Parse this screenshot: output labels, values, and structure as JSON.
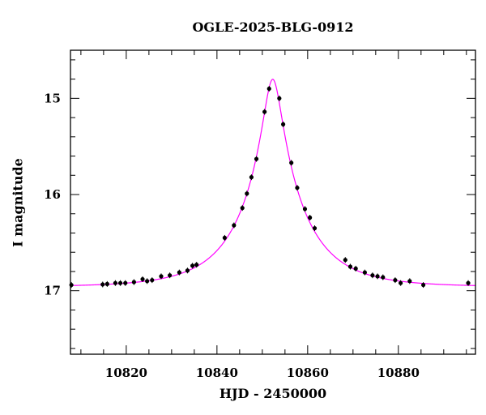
{
  "chart_data": {
    "type": "scatter",
    "title": "OGLE-2025-BLG-0912",
    "xlabel": "HJD - 2450000",
    "ylabel": "I magnitude",
    "xlim": [
      10807.7,
      10897.0
    ],
    "ylim": [
      17.66,
      14.5
    ],
    "y_inverted": true,
    "xticks": [
      10820,
      10840,
      10860,
      10880
    ],
    "xticks_minor_step": 5,
    "yticks": [
      15,
      16,
      17
    ],
    "yticks_minor_step": 0.2,
    "grid": false,
    "colors": {
      "points": "#000000",
      "model": "#ff00ff",
      "axes": "#000000"
    },
    "series": [
      {
        "type": "scatter",
        "x": [
          10807.9,
          10814.8,
          10815.8,
          10817.6,
          10818.7,
          10819.8,
          10821.7,
          10823.6,
          10824.6,
          10825.7,
          10827.7,
          10829.6,
          10831.7,
          10833.5,
          10834.6,
          10835.5,
          10841.7,
          10843.75,
          10845.6,
          10846.6,
          10847.6,
          10848.7,
          10850.5,
          10851.5,
          10853.75,
          10854.6,
          10856.4,
          10857.7,
          10859.4,
          10860.5,
          10861.55,
          10868.3,
          10869.4,
          10870.6,
          10872.6,
          10874.3,
          10875.4,
          10876.6,
          10879.3,
          10880.5,
          10882.5,
          10885.5,
          10895.4
        ],
        "y": [
          16.94,
          16.935,
          16.93,
          16.92,
          16.92,
          16.92,
          16.91,
          16.88,
          16.9,
          16.89,
          16.85,
          16.84,
          16.81,
          16.79,
          16.74,
          16.73,
          16.45,
          16.32,
          16.14,
          15.99,
          15.82,
          15.63,
          15.14,
          14.9,
          15.0,
          15.27,
          15.67,
          15.93,
          16.15,
          16.24,
          16.35,
          16.68,
          16.75,
          16.77,
          16.81,
          16.84,
          16.85,
          16.86,
          16.89,
          16.92,
          16.9,
          16.94,
          16.92
        ]
      },
      {
        "type": "line",
        "model": "paczynski",
        "t0": 10852.3,
        "u0": 0.138,
        "tE": 13.7,
        "baseline_mag": 16.96
      }
    ]
  }
}
